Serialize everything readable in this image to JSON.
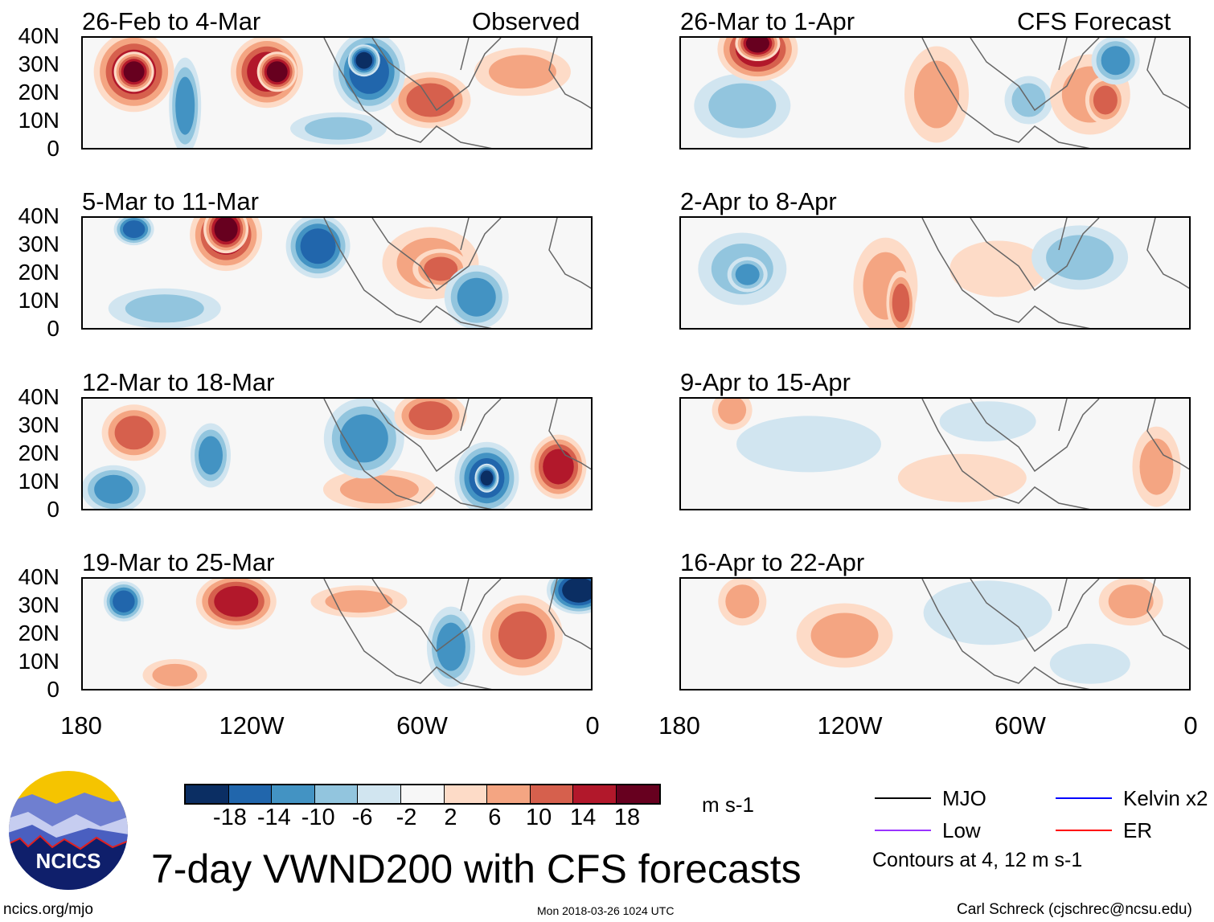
{
  "header": {
    "left_label": "Observed",
    "right_label": "CFS Forecast"
  },
  "panels_left": [
    "26-Feb to 4-Mar",
    "5-Mar to 11-Mar",
    "12-Mar to 18-Mar",
    "19-Mar to 25-Mar"
  ],
  "panels_right": [
    "26-Mar to 1-Apr",
    "2-Apr to 8-Apr",
    "9-Apr to 15-Apr",
    "16-Apr to 22-Apr"
  ],
  "y_ticks": [
    "40N",
    "30N",
    "20N",
    "10N",
    "0"
  ],
  "x_ticks": [
    "180",
    "120W",
    "60W",
    "0"
  ],
  "colorbar": {
    "labels": [
      "-18",
      "-14",
      "-10",
      "-6",
      "-2",
      "2",
      "6",
      "10",
      "14",
      "18"
    ],
    "units": "m s-1",
    "colors": [
      "#0b2e63",
      "#2166ac",
      "#4393c3",
      "#92c5de",
      "#d1e5f0",
      "#f7f7f7",
      "#fddbc7",
      "#f4a582",
      "#d6604d",
      "#b2182b",
      "#67001f"
    ]
  },
  "legend": {
    "items": [
      {
        "label": "MJO",
        "color": "#000000"
      },
      {
        "label": "Kelvin x2",
        "color": "#0000ff"
      },
      {
        "label": "Low",
        "color": "#9933ff"
      },
      {
        "label": "ER",
        "color": "#ff0000"
      }
    ],
    "note": "Contours at 4, 12 m s-1"
  },
  "title": "7-day VWND200 with CFS forecasts",
  "footer": {
    "url": "ncics.org/mjo",
    "timestamp": "Mon 2018-03-26 1024 UTC",
    "credit": "Carl Schreck (cjschrec@ncsu.edu)"
  },
  "logo": {
    "text": "NCICS"
  }
}
